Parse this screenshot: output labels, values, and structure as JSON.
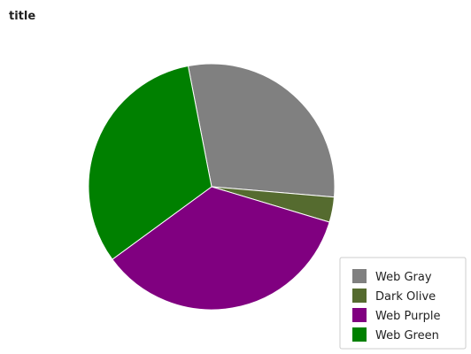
{
  "chart_data": {
    "type": "pie",
    "title": "title",
    "categories": [
      "Web Gray",
      "Dark Olive",
      "Web Purple",
      "Web Green"
    ],
    "values": [
      29.4,
      3.3,
      35.3,
      32.0
    ],
    "colors": [
      "#808080",
      "#556b2f",
      "#800080",
      "#008000"
    ],
    "start_angle_deg": -101,
    "direction": "clockwise",
    "legend_position": "bottom-right"
  }
}
